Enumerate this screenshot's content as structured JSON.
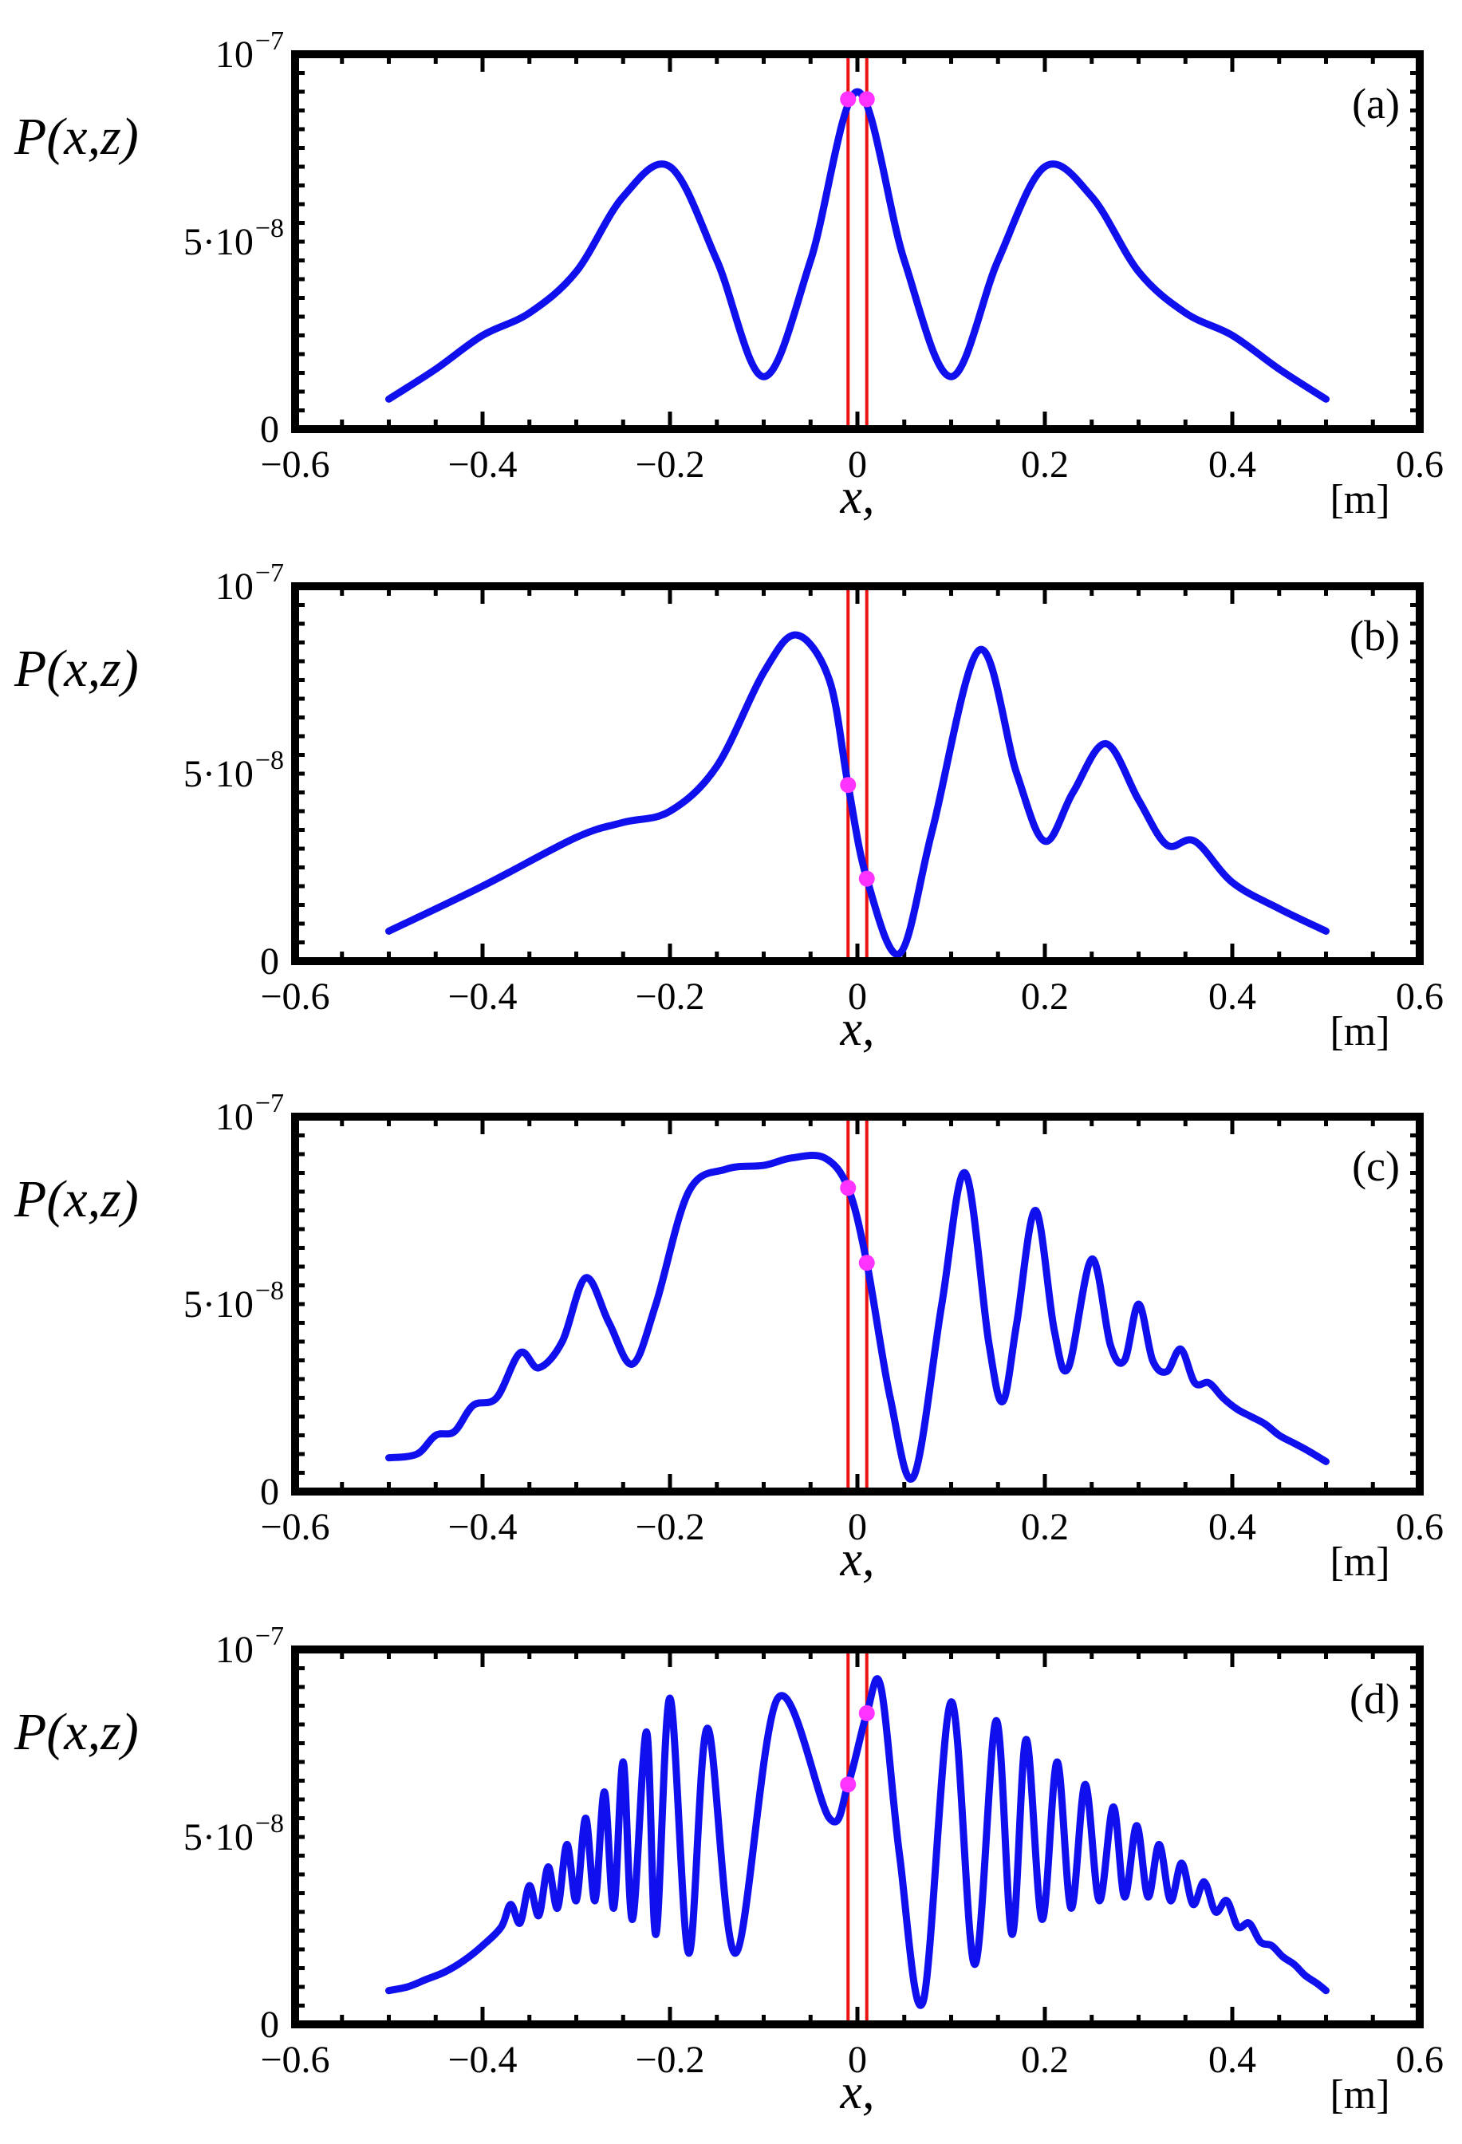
{
  "colors": {
    "curve": "#1010ee",
    "marker_line": "#ee1111",
    "marker_dot": "#ff33ff",
    "axes": "#000000",
    "background": "#ffffff"
  },
  "chart_data": [
    {
      "type": "line",
      "panel_label": "(a)",
      "ylabel": "P(x,z)",
      "xlabel": "x,",
      "xunit": "[m]",
      "xlim": [
        -0.6,
        0.6
      ],
      "ylim": [
        0,
        1e-07
      ],
      "x_ticks": [
        "−0.6",
        "−0.4",
        "−0.2",
        "0",
        "0.2",
        "0.4",
        "0.6"
      ],
      "y_ticks": [
        {
          "base": "0",
          "exp": ""
        },
        {
          "base": "5·10",
          "exp": "−8"
        },
        {
          "base": "10",
          "exp": "−7"
        }
      ],
      "markers_x": [
        -0.01,
        0.01
      ],
      "marker_points": [
        {
          "x": -0.01,
          "y": 8.8e-08
        },
        {
          "x": 0.01,
          "y": 8.8e-08
        }
      ],
      "series": [
        {
          "x": [
            -0.5,
            -0.45,
            -0.4,
            -0.35,
            -0.3,
            -0.25,
            -0.2,
            -0.15,
            -0.1,
            -0.05,
            0,
            0.05,
            0.1,
            0.15,
            0.2,
            0.25,
            0.3,
            0.35,
            0.4,
            0.45,
            0.5
          ],
          "y": [
            8e-09,
            1.6e-08,
            2.5e-08,
            3.1e-08,
            4.2e-08,
            6.2e-08,
            7e-08,
            4.5e-08,
            1.4e-08,
            4.5e-08,
            9e-08,
            4.5e-08,
            1.4e-08,
            4.5e-08,
            7e-08,
            6.2e-08,
            4.2e-08,
            3.1e-08,
            2.5e-08,
            1.6e-08,
            8e-09
          ]
        }
      ]
    },
    {
      "type": "line",
      "panel_label": "(b)",
      "ylabel": "P(x,z)",
      "xlabel": "x,",
      "xunit": "[m]",
      "xlim": [
        -0.6,
        0.6
      ],
      "ylim": [
        0,
        1e-07
      ],
      "x_ticks": [
        "−0.6",
        "−0.4",
        "−0.2",
        "0",
        "0.2",
        "0.4",
        "0.6"
      ],
      "y_ticks": [
        {
          "base": "0",
          "exp": ""
        },
        {
          "base": "5·10",
          "exp": "−8"
        },
        {
          "base": "10",
          "exp": "−7"
        }
      ],
      "markers_x": [
        -0.01,
        0.01
      ],
      "marker_points": [
        {
          "x": -0.01,
          "y": 4.7e-08
        },
        {
          "x": 0.01,
          "y": 2.2e-08
        }
      ],
      "series": [
        {
          "x": [
            -0.5,
            -0.4,
            -0.3,
            -0.25,
            -0.2,
            -0.15,
            -0.1,
            -0.065,
            -0.03,
            -0.01,
            0.01,
            0.045,
            0.08,
            0.13,
            0.17,
            0.2,
            0.23,
            0.265,
            0.3,
            0.33,
            0.36,
            0.4,
            0.45,
            0.5
          ],
          "y": [
            8e-09,
            2e-08,
            3.3e-08,
            3.7e-08,
            4e-08,
            5.2e-08,
            7.7e-08,
            8.7e-08,
            7.5e-08,
            4.7e-08,
            2.2e-08,
            2e-09,
            3.5e-08,
            8.3e-08,
            5e-08,
            3.2e-08,
            4.5e-08,
            5.8e-08,
            4.3e-08,
            3.1e-08,
            3.2e-08,
            2.1e-08,
            1.4e-08,
            8e-09
          ]
        }
      ]
    },
    {
      "type": "line",
      "panel_label": "(c)",
      "ylabel": "P(x,z)",
      "xlabel": "x,",
      "xunit": "[m]",
      "xlim": [
        -0.6,
        0.6
      ],
      "ylim": [
        0,
        1e-07
      ],
      "x_ticks": [
        "−0.6",
        "−0.4",
        "−0.2",
        "0",
        "0.2",
        "0.4",
        "0.6"
      ],
      "y_ticks": [
        {
          "base": "0",
          "exp": ""
        },
        {
          "base": "5·10",
          "exp": "−8"
        },
        {
          "base": "10",
          "exp": "−7"
        }
      ],
      "markers_x": [
        -0.01,
        0.01
      ],
      "marker_points": [
        {
          "x": -0.01,
          "y": 8.1e-08
        },
        {
          "x": 0.01,
          "y": 6.1e-08
        }
      ],
      "series": [
        {
          "x": [
            -0.5,
            -0.47,
            -0.45,
            -0.43,
            -0.41,
            -0.385,
            -0.36,
            -0.34,
            -0.315,
            -0.29,
            -0.265,
            -0.24,
            -0.215,
            -0.18,
            -0.14,
            -0.1,
            -0.07,
            -0.035,
            -0.01,
            0.01,
            0.035,
            0.06,
            0.09,
            0.115,
            0.14,
            0.155,
            0.17,
            0.19,
            0.21,
            0.225,
            0.25,
            0.27,
            0.285,
            0.3,
            0.315,
            0.33,
            0.345,
            0.36,
            0.375,
            0.39,
            0.405,
            0.42,
            0.435,
            0.45,
            0.465,
            0.48,
            0.5
          ],
          "y": [
            9e-09,
            1e-08,
            1.5e-08,
            1.6e-08,
            2.3e-08,
            2.5e-08,
            3.7e-08,
            3.3e-08,
            4e-08,
            5.7e-08,
            4.5e-08,
            3.4e-08,
            5e-08,
            8e-08,
            8.6e-08,
            8.7e-08,
            8.9e-08,
            8.9e-08,
            8.1e-08,
            6.1e-08,
            2.5e-08,
            4e-09,
            5e-08,
            8.5e-08,
            4e-08,
            2.4e-08,
            4.5e-08,
            7.5e-08,
            4.3e-08,
            3.3e-08,
            6.2e-08,
            3.9e-08,
            3.5e-08,
            5e-08,
            3.5e-08,
            3.2e-08,
            3.8e-08,
            2.9e-08,
            2.9e-08,
            2.5e-08,
            2.2e-08,
            2e-08,
            1.8e-08,
            1.5e-08,
            1.3e-08,
            1.1e-08,
            8e-09
          ]
        }
      ]
    },
    {
      "type": "line",
      "panel_label": "(d)",
      "ylabel": "P(x,z)",
      "xlabel": "x,",
      "xunit": "[m]",
      "xlim": [
        -0.6,
        0.6
      ],
      "ylim": [
        0,
        1e-07
      ],
      "x_ticks": [
        "−0.6",
        "−0.4",
        "−0.2",
        "0",
        "0.2",
        "0.4",
        "0.6"
      ],
      "y_ticks": [
        {
          "base": "0",
          "exp": ""
        },
        {
          "base": "5·10",
          "exp": "−8"
        },
        {
          "base": "10",
          "exp": "−7"
        }
      ],
      "markers_x": [
        -0.01,
        0.01
      ],
      "marker_points": [
        {
          "x": -0.01,
          "y": 6.4e-08
        },
        {
          "x": 0.01,
          "y": 8.3e-08
        }
      ],
      "series": [
        {
          "x": [
            -0.5,
            -0.48,
            -0.46,
            -0.44,
            -0.42,
            -0.4,
            -0.38,
            -0.37,
            -0.36,
            -0.35,
            -0.34,
            -0.33,
            -0.32,
            -0.31,
            -0.3,
            -0.29,
            -0.28,
            -0.27,
            -0.26,
            -0.25,
            -0.24,
            -0.225,
            -0.215,
            -0.2,
            -0.18,
            -0.16,
            -0.13,
            -0.085,
            -0.03,
            -0.01,
            0.01,
            0.025,
            0.045,
            0.07,
            0.1,
            0.125,
            0.148,
            0.165,
            0.18,
            0.197,
            0.213,
            0.228,
            0.243,
            0.258,
            0.273,
            0.285,
            0.298,
            0.31,
            0.322,
            0.334,
            0.346,
            0.358,
            0.37,
            0.382,
            0.394,
            0.406,
            0.418,
            0.43,
            0.442,
            0.454,
            0.466,
            0.478,
            0.49,
            0.5
          ],
          "y": [
            9e-09,
            1e-08,
            1.2e-08,
            1.4e-08,
            1.7e-08,
            2.1e-08,
            2.6e-08,
            3.2e-08,
            2.7e-08,
            3.7e-08,
            2.9e-08,
            4.2e-08,
            3.1e-08,
            4.8e-08,
            3.3e-08,
            5.5e-08,
            3.3e-08,
            6.2e-08,
            3.1e-08,
            7e-08,
            2.8e-08,
            7.8e-08,
            2.4e-08,
            8.7e-08,
            1.9e-08,
            7.9e-08,
            1.9e-08,
            8.7e-08,
            5.5e-08,
            6.4e-08,
            8.3e-08,
            9e-08,
            4.5e-08,
            6e-09,
            8.6e-08,
            1.6e-08,
            8.1e-08,
            2.4e-08,
            7.6e-08,
            2.8e-08,
            7e-08,
            3.1e-08,
            6.4e-08,
            3.3e-08,
            5.8e-08,
            3.4e-08,
            5.3e-08,
            3.4e-08,
            4.8e-08,
            3.3e-08,
            4.3e-08,
            3.2e-08,
            3.8e-08,
            3e-08,
            3.3e-08,
            2.6e-08,
            2.7e-08,
            2.2e-08,
            2.1e-08,
            1.8e-08,
            1.6e-08,
            1.3e-08,
            1.1e-08,
            9e-09
          ]
        }
      ]
    }
  ]
}
